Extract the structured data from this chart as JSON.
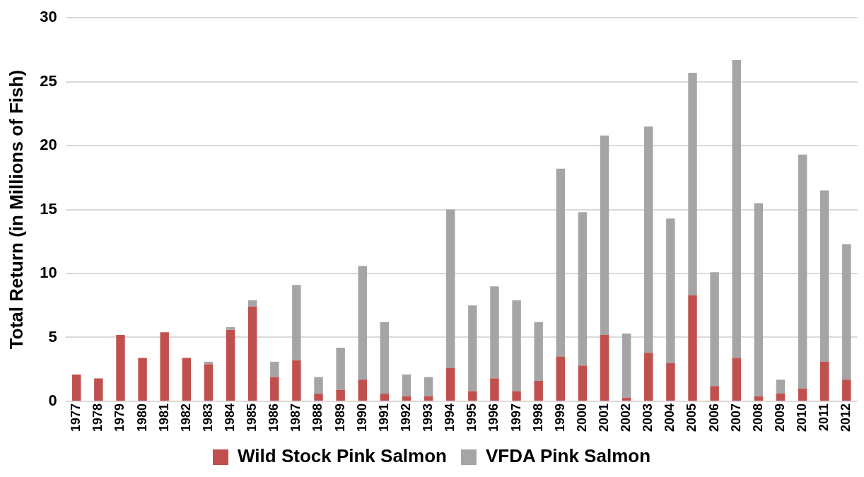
{
  "chart_data": {
    "type": "bar",
    "stacked": true,
    "ylabel": "Total Return (in Millions of Fish)",
    "categories": [
      "1977",
      "1978",
      "1979",
      "1980",
      "1981",
      "1982",
      "1983",
      "1984",
      "1985",
      "1986",
      "1987",
      "1988",
      "1989",
      "1990",
      "1991",
      "1992",
      "1993",
      "1994",
      "1995",
      "1996",
      "1997",
      "1998",
      "1999",
      "2000",
      "2001",
      "2002",
      "2003",
      "2004",
      "2005",
      "2006",
      "2007",
      "2008",
      "2009",
      "2010",
      "2011",
      "2012"
    ],
    "series": [
      {
        "name": "Wild Stock Pink Salmon",
        "color": "#c0504d",
        "values": [
          2.1,
          1.8,
          5.2,
          3.4,
          5.4,
          3.4,
          2.9,
          5.6,
          7.4,
          1.9,
          3.2,
          0.6,
          0.9,
          1.7,
          0.6,
          0.4,
          0.4,
          2.6,
          0.8,
          1.8,
          0.8,
          1.6,
          3.5,
          2.8,
          5.2,
          0.3,
          3.8,
          3.0,
          8.3,
          1.2,
          3.4,
          0.4,
          0.6,
          1.0,
          3.1,
          1.7
        ]
      },
      {
        "name": "VFDA Pink Salmon",
        "color": "#a5a5a5",
        "values": [
          0,
          0,
          0,
          0,
          0,
          0,
          0.2,
          0.2,
          0.5,
          1.2,
          5.9,
          1.3,
          3.3,
          8.9,
          5.6,
          1.7,
          1.5,
          12.4,
          6.7,
          7.2,
          7.1,
          4.6,
          14.7,
          12.0,
          15.6,
          5.0,
          17.7,
          11.3,
          17.4,
          8.9,
          23.3,
          15.1,
          1.1,
          18.3,
          13.4,
          10.6
        ]
      }
    ],
    "ylim": [
      0,
      30
    ],
    "yticks": [
      0,
      5,
      10,
      15,
      20,
      25,
      30
    ],
    "grid": "y",
    "legend": "bottom"
  }
}
